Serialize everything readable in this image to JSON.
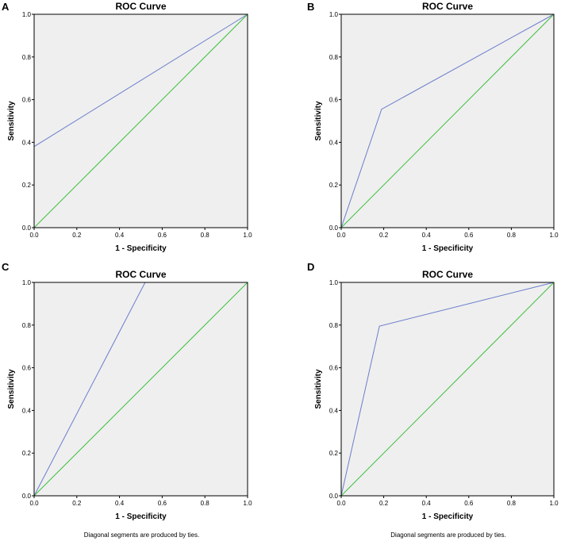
{
  "colors": {
    "plot_background": "#efefef",
    "frame": "#000000",
    "roc_line": "#6b7ecc",
    "reference_line": "#3fbf3f"
  },
  "chart_data": [
    {
      "panel": "A",
      "type": "line",
      "title": "ROC Curve",
      "xlabel": "1 - Specificity",
      "ylabel": "Sensitivity",
      "xlim": [
        0,
        1
      ],
      "ylim": [
        0,
        1
      ],
      "ticks": [
        "0.0",
        "0.2",
        "0.4",
        "0.6",
        "0.8",
        "1.0"
      ],
      "grid": false,
      "series": [
        {
          "name": "ROC",
          "x": [
            0.0,
            0.0,
            1.0
          ],
          "y": [
            0.0,
            0.38,
            1.0
          ]
        },
        {
          "name": "Reference",
          "x": [
            0.0,
            1.0
          ],
          "y": [
            0.0,
            1.0
          ]
        }
      ],
      "footnote": ""
    },
    {
      "panel": "B",
      "type": "line",
      "title": "ROC Curve",
      "xlabel": "1 - Specificity",
      "ylabel": "Sensitivity",
      "xlim": [
        0,
        1
      ],
      "ylim": [
        0,
        1
      ],
      "ticks": [
        "0.0",
        "0.2",
        "0.4",
        "0.6",
        "0.8",
        "1.0"
      ],
      "grid": false,
      "series": [
        {
          "name": "ROC",
          "x": [
            0.0,
            0.19,
            1.0
          ],
          "y": [
            0.0,
            0.555,
            1.0
          ]
        },
        {
          "name": "Reference",
          "x": [
            0.0,
            1.0
          ],
          "y": [
            0.0,
            1.0
          ]
        }
      ],
      "footnote": ""
    },
    {
      "panel": "C",
      "type": "line",
      "title": "ROC Curve",
      "xlabel": "1 - Specificity",
      "ylabel": "Sensitivity",
      "xlim": [
        0,
        1
      ],
      "ylim": [
        0,
        1
      ],
      "ticks": [
        "0.0",
        "0.2",
        "0.4",
        "0.6",
        "0.8",
        "1.0"
      ],
      "grid": false,
      "series": [
        {
          "name": "ROC",
          "x": [
            0.0,
            0.52,
            1.0
          ],
          "y": [
            0.0,
            1.0,
            1.0
          ]
        },
        {
          "name": "Reference",
          "x": [
            0.0,
            1.0
          ],
          "y": [
            0.0,
            1.0
          ]
        }
      ],
      "footnote": "Diagonal segments are produced by ties."
    },
    {
      "panel": "D",
      "type": "line",
      "title": "ROC Curve",
      "xlabel": "1 - Specificity",
      "ylabel": "Sensitivity",
      "xlim": [
        0,
        1
      ],
      "ylim": [
        0,
        1
      ],
      "ticks": [
        "0.0",
        "0.2",
        "0.4",
        "0.6",
        "0.8",
        "1.0"
      ],
      "grid": false,
      "series": [
        {
          "name": "ROC",
          "x": [
            0.0,
            0.18,
            1.0
          ],
          "y": [
            0.0,
            0.795,
            1.0
          ]
        },
        {
          "name": "Reference",
          "x": [
            0.0,
            1.0
          ],
          "y": [
            0.0,
            1.0
          ]
        }
      ],
      "footnote": "Diagonal segments are produced by ties."
    }
  ]
}
